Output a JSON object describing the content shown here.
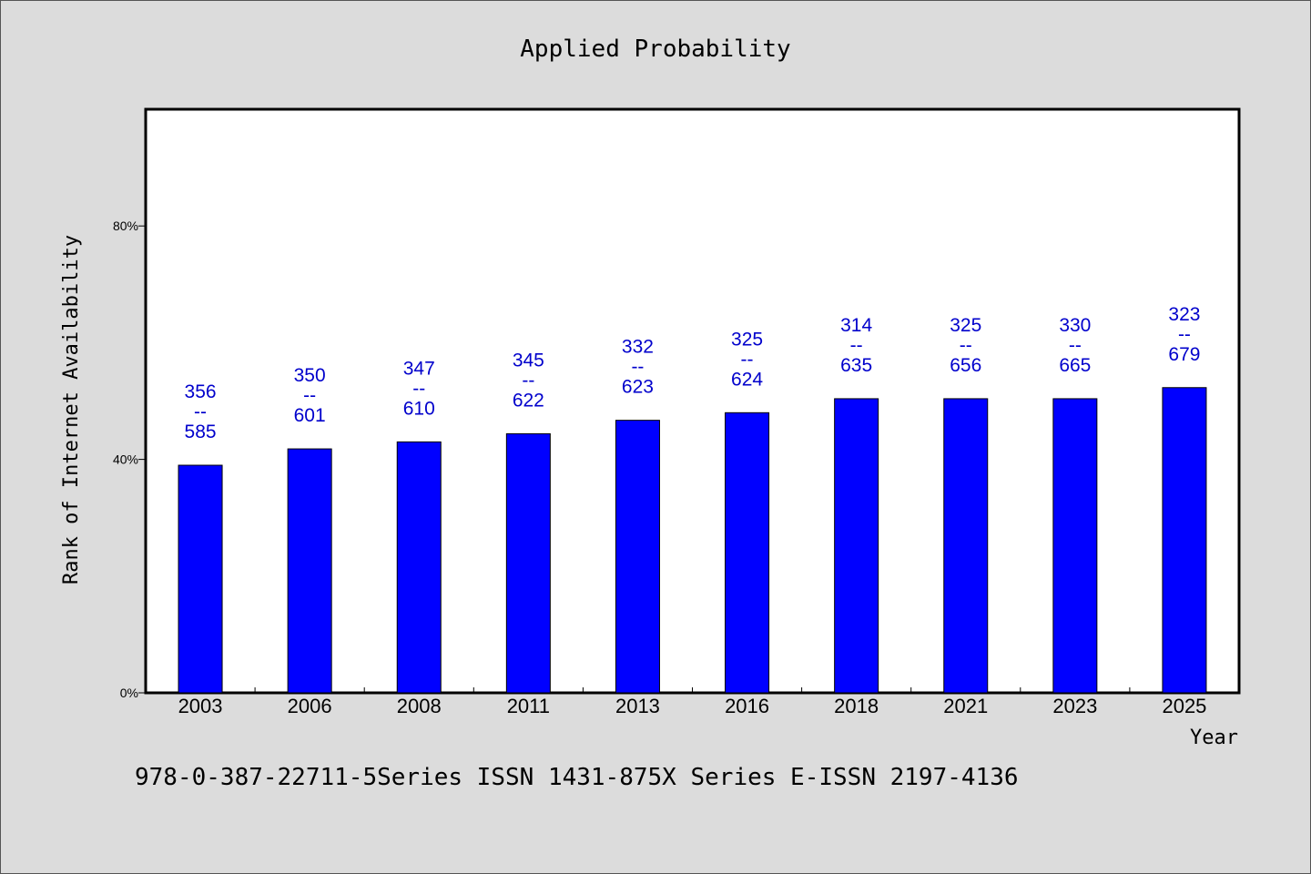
{
  "chart_data": {
    "type": "bar",
    "title": "Applied Probability",
    "xlabel": "Year",
    "ylabel": "Rank of Internet Availability",
    "categories": [
      "2003",
      "2006",
      "2008",
      "2011",
      "2013",
      "2016",
      "2018",
      "2021",
      "2023",
      "2025"
    ],
    "values": [
      39,
      41.8,
      43,
      44.4,
      46.7,
      48,
      50.4,
      50.4,
      50.4,
      52.3
    ],
    "data_labels": [
      [
        "356",
        "--",
        "585"
      ],
      [
        "350",
        "--",
        "601"
      ],
      [
        "347",
        "--",
        "610"
      ],
      [
        "345",
        "--",
        "622"
      ],
      [
        "332",
        "--",
        "623"
      ],
      [
        "325",
        "--",
        "624"
      ],
      [
        "314",
        "--",
        "635"
      ],
      [
        "325",
        "--",
        "656"
      ],
      [
        "330",
        "--",
        "665"
      ],
      [
        "323",
        "--",
        "679"
      ]
    ],
    "ylim": [
      0,
      100
    ],
    "yticks": [
      0,
      40,
      80
    ],
    "ytick_labels": [
      "0%",
      "40%",
      "80%"
    ],
    "grid": false,
    "bar_color": "#0000ff",
    "label_color": "#0000cc"
  },
  "footer": "978-0-387-22711-5Series ISSN 1431-875X Series E-ISSN 2197-4136"
}
